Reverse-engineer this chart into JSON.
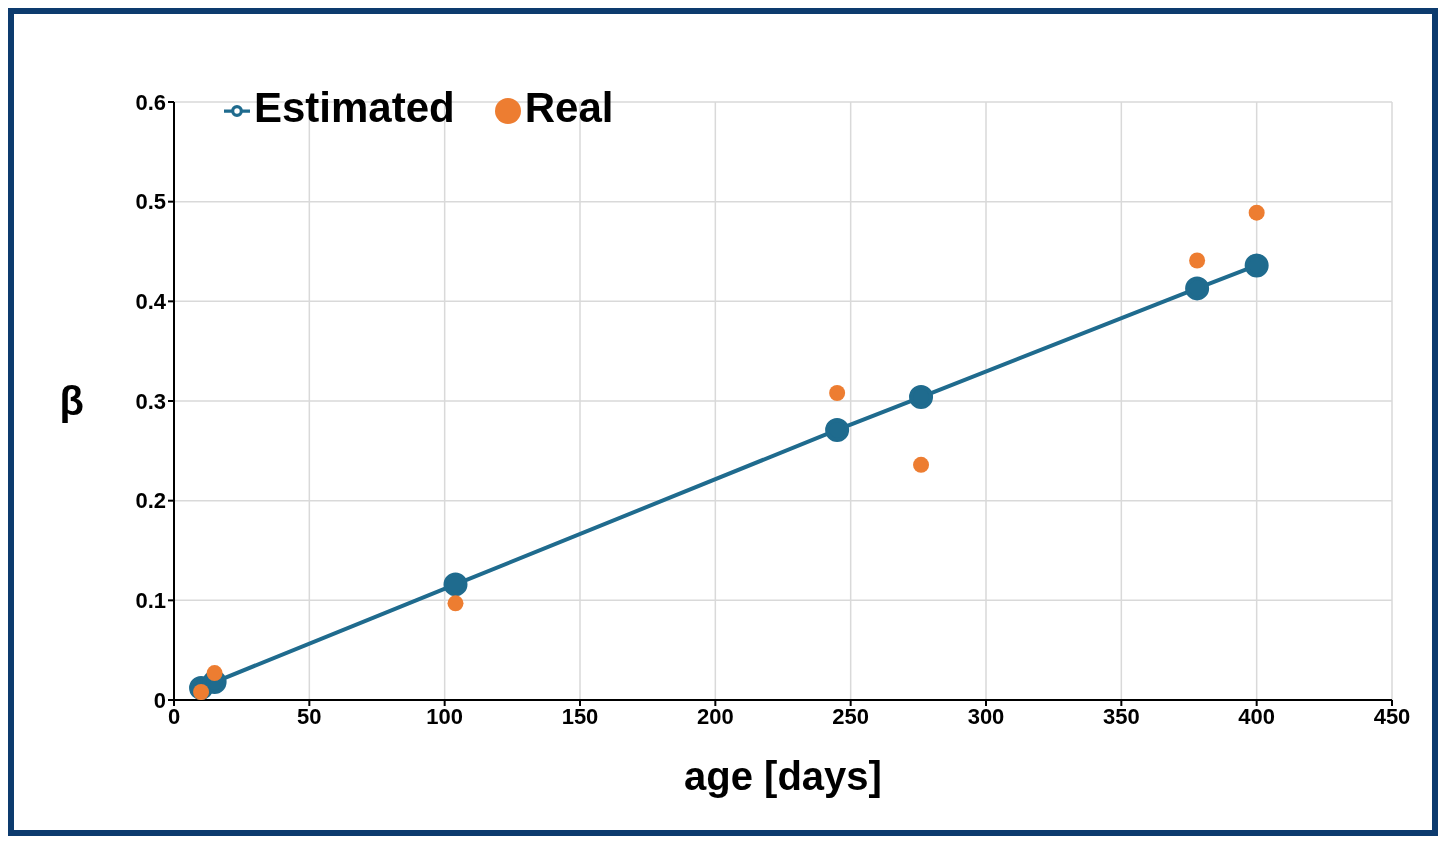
{
  "chart_data": {
    "type": "line",
    "xlabel": "age [days]",
    "ylabel": "β",
    "series": [
      {
        "name": "Estimated",
        "type": "line",
        "color": "#1f6b8e",
        "x": [
          10,
          15,
          104,
          245,
          276,
          378,
          400
        ],
        "values": [
          0.012,
          0.018,
          0.116,
          0.271,
          0.304,
          0.413,
          0.436
        ]
      },
      {
        "name": "Real",
        "type": "scatter",
        "color": "#ed7d31",
        "x": [
          10,
          15,
          104,
          245,
          276,
          378,
          400
        ],
        "values": [
          0.008,
          0.027,
          0.097,
          0.308,
          0.236,
          0.441,
          0.489
        ]
      }
    ],
    "xlim": [
      0,
      450
    ],
    "xticks": [
      0,
      50,
      100,
      150,
      200,
      250,
      300,
      350,
      400,
      450
    ],
    "ylim": [
      0,
      0.6
    ],
    "yticks": [
      0,
      0.1,
      0.2,
      0.3,
      0.4,
      0.5,
      0.6
    ],
    "grid": true,
    "legend": "top left",
    "marker": "circle",
    "line_style": "solid"
  }
}
